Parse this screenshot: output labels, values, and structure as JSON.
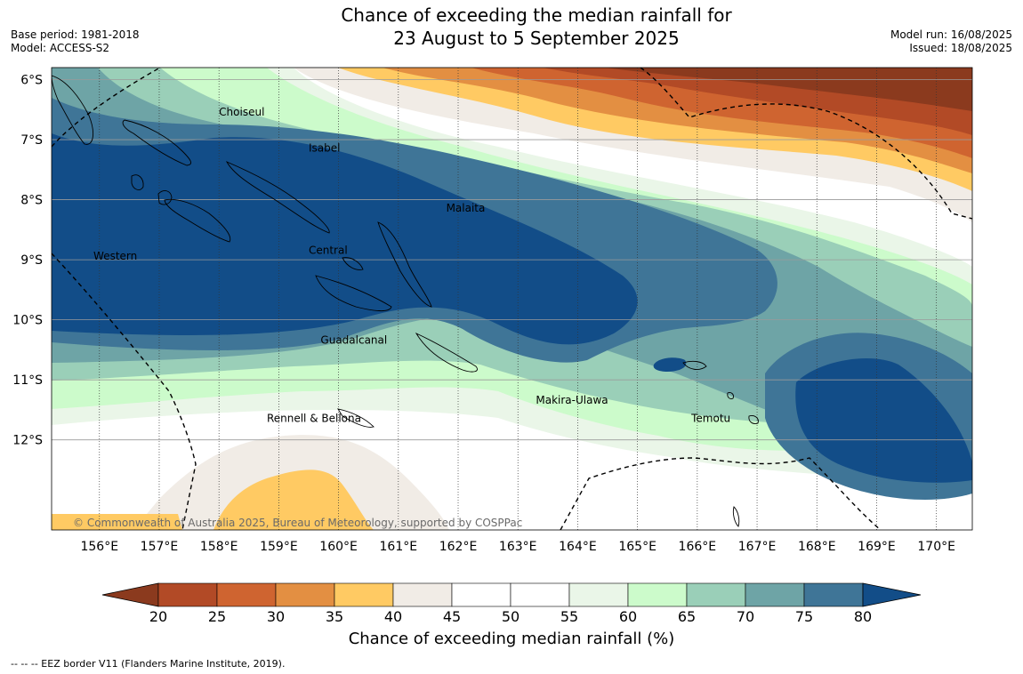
{
  "title": {
    "line1": "Chance of exceeding the median rainfall for",
    "line2": "23 August to 5 September 2025"
  },
  "meta_left": [
    "Base period: 1981-2018",
    "Model: ACCESS-S2"
  ],
  "meta_right": [
    "Model run: 16/08/2025",
    "Issued: 18/08/2025"
  ],
  "map": {
    "lon_range": [
      155.2,
      170.6
    ],
    "lat_range": [
      -5.8,
      -13.5
    ],
    "lon_ticks": [
      {
        "value": 156,
        "label": "156°E"
      },
      {
        "value": 157,
        "label": "157°E"
      },
      {
        "value": 158,
        "label": "158°E"
      },
      {
        "value": 159,
        "label": "159°E"
      },
      {
        "value": 160,
        "label": "160°E"
      },
      {
        "value": 161,
        "label": "161°E"
      },
      {
        "value": 162,
        "label": "162°E"
      },
      {
        "value": 163,
        "label": "163°E"
      },
      {
        "value": 164,
        "label": "164°E"
      },
      {
        "value": 165,
        "label": "165°E"
      },
      {
        "value": 166,
        "label": "166°E"
      },
      {
        "value": 167,
        "label": "167°E"
      },
      {
        "value": 168,
        "label": "168°E"
      },
      {
        "value": 169,
        "label": "169°E"
      },
      {
        "value": 170,
        "label": "170°E"
      }
    ],
    "lat_ticks": [
      {
        "value": -6,
        "label": "6°S"
      },
      {
        "value": -7,
        "label": "7°S"
      },
      {
        "value": -8,
        "label": "8°S"
      },
      {
        "value": -9,
        "label": "9°S"
      },
      {
        "value": -10,
        "label": "10°S"
      },
      {
        "value": -11,
        "label": "11°S"
      },
      {
        "value": -12,
        "label": "12°S"
      }
    ],
    "provinces": [
      {
        "name": "Choiseul",
        "lon": 158.0,
        "lat": -6.6
      },
      {
        "name": "Isabel",
        "lon": 159.5,
        "lat": -7.2
      },
      {
        "name": "Malaita",
        "lon": 161.8,
        "lat": -8.2
      },
      {
        "name": "Western",
        "lon": 155.9,
        "lat": -9.0
      },
      {
        "name": "Central",
        "lon": 159.5,
        "lat": -8.9
      },
      {
        "name": "Guadalcanal",
        "lon": 159.7,
        "lat": -10.4
      },
      {
        "name": "Rennell & Bellona",
        "lon": 158.8,
        "lat": -11.7
      },
      {
        "name": "Makira-Ulawa",
        "lon": 163.3,
        "lat": -11.4
      },
      {
        "name": "Temotu",
        "lon": 165.9,
        "lat": -11.7
      }
    ],
    "copyright": "© Commonwealth of Australia 2025, Bureau of Meteorology, supported by COSPPac",
    "colors": {
      "lt20": "#8b3a1e",
      "20_25": "#b24a26",
      "25_30": "#cf6430",
      "30_35": "#e38f42",
      "35_40": "#ffca63",
      "40_45": "#f1ece6",
      "45_55": "#ffffff",
      "55_60": "#eaf6e8",
      "60_65": "#ccfbcb",
      "65_70": "#9acfb8",
      "70_75": "#6ea4a6",
      "75_80": "#3f7597",
      "gt80": "#124d88"
    }
  },
  "colorbar": {
    "ticks": [
      "20",
      "25",
      "30",
      "35",
      "40",
      "45",
      "50",
      "55",
      "60",
      "65",
      "70",
      "75",
      "80"
    ],
    "colors": [
      "#b24a26",
      "#cf6430",
      "#e38f42",
      "#ffca63",
      "#f1ece6",
      "#ffffff",
      "#ffffff",
      "#eaf6e8",
      "#ccfbcb",
      "#9acfb8",
      "#6ea4a6",
      "#3f7597"
    ],
    "low_color": "#8b3a1e",
    "high_color": "#124d88",
    "title": "Chance of exceeding median rainfall (%)"
  },
  "footnote": "--  --  -- EEZ border V11 (Flanders Marine Institute, 2019)."
}
